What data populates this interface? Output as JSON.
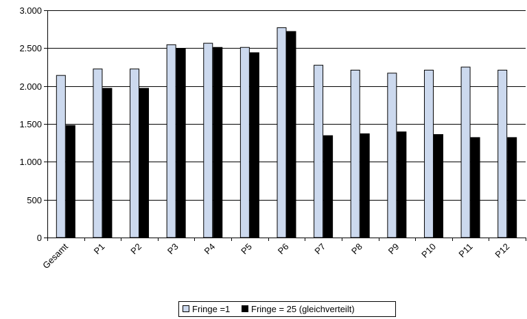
{
  "chart_data": {
    "type": "bar",
    "categories": [
      "Gesamt",
      "P1",
      "P2",
      "P3",
      "P4",
      "P5",
      "P6",
      "P7",
      "P8",
      "P9",
      "P10",
      "P11",
      "P12"
    ],
    "series": [
      {
        "name": "Fringe =1",
        "color": "#ccd9ee",
        "values": [
          2140,
          2225,
          2225,
          2545,
          2565,
          2510,
          2770,
          2275,
          2210,
          2170,
          2210,
          2250,
          2210
        ]
      },
      {
        "name": "Fringe = 25 (gleichverteilt)",
        "color": "#000000",
        "values": [
          1480,
          1970,
          1970,
          2490,
          2510,
          2440,
          2720,
          1345,
          1370,
          1395,
          1360,
          1320,
          1320
        ]
      }
    ],
    "ylim": [
      0,
      3000
    ],
    "yticks": [
      0,
      500,
      1000,
      1500,
      2000,
      2500,
      3000
    ],
    "ytick_labels": [
      "0",
      "500",
      "1.000",
      "1.500",
      "2.000",
      "2.500",
      "3.000"
    ],
    "grid": true,
    "legend_position": "bottom-center"
  }
}
